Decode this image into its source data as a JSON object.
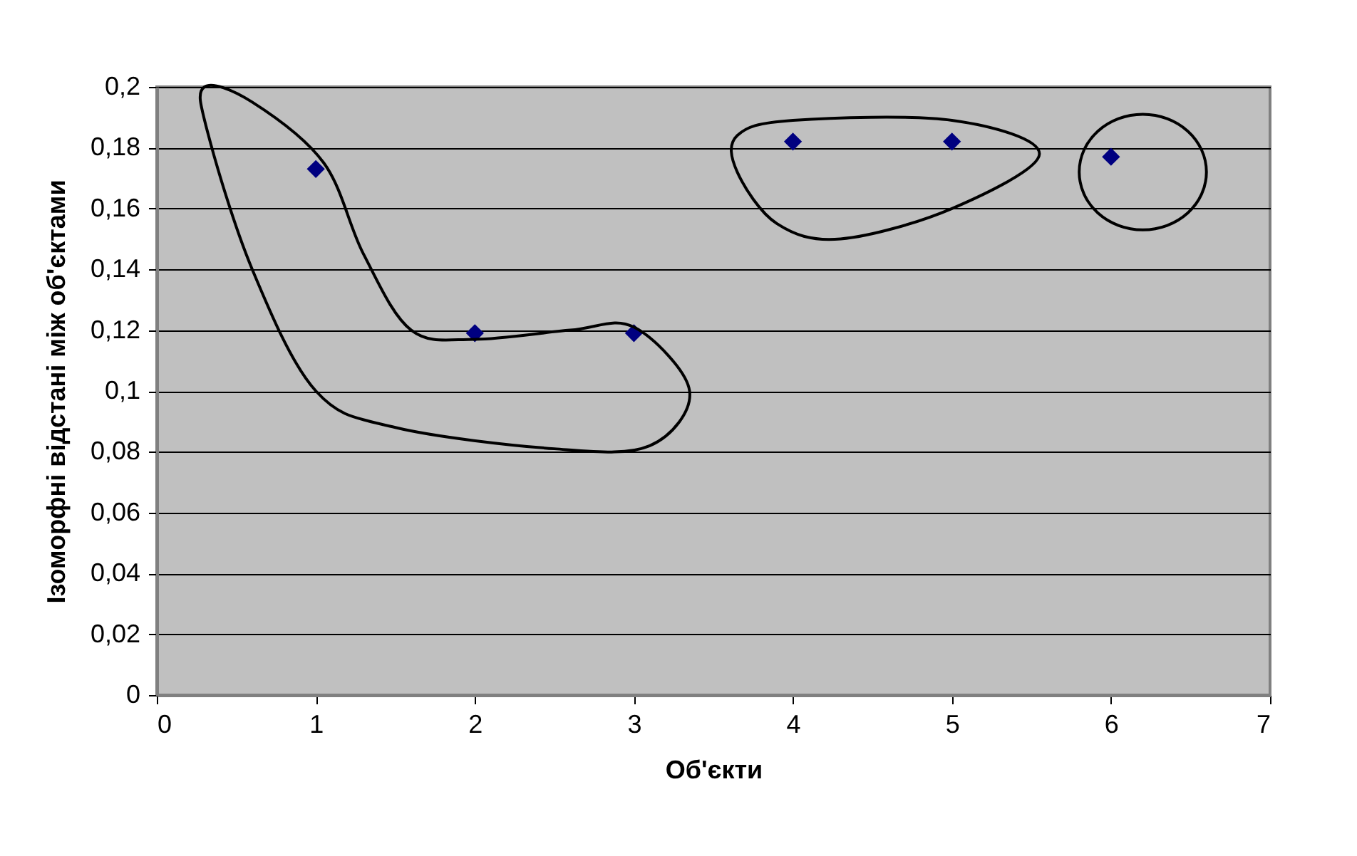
{
  "chart_data": {
    "type": "scatter",
    "xlabel": "Об'єкти",
    "ylabel": "Ізоморфні відстані між об'єктами",
    "x": [
      1,
      2,
      3,
      4,
      5,
      6
    ],
    "series": [
      {
        "color": "#000080",
        "values": [
          0.173,
          0.119,
          0.119,
          0.182,
          0.182,
          0.177
        ]
      }
    ],
    "marker": "diamond",
    "xlim": [
      0,
      7
    ],
    "xticks": [
      0,
      1,
      2,
      3,
      4,
      5,
      6,
      7
    ],
    "ylim": [
      0,
      0.2
    ],
    "yticks": [
      0,
      {
        "value": 0.02,
        "label": "0,02"
      },
      {
        "value": 0.04,
        "label": "0,04"
      },
      {
        "value": 0.06,
        "label": "0,06"
      },
      {
        "value": 0.08,
        "label": "0,08"
      },
      {
        "value": 0.1,
        "label": "0,1"
      },
      {
        "value": 0.12,
        "label": "0,12"
      },
      {
        "value": 0.14,
        "label": "0,14"
      },
      {
        "value": 0.16,
        "label": "0,16"
      },
      {
        "value": 0.18,
        "label": "0,18"
      },
      {
        "value": 0.2,
        "label": "0,2"
      }
    ],
    "grid": "y"
  }
}
